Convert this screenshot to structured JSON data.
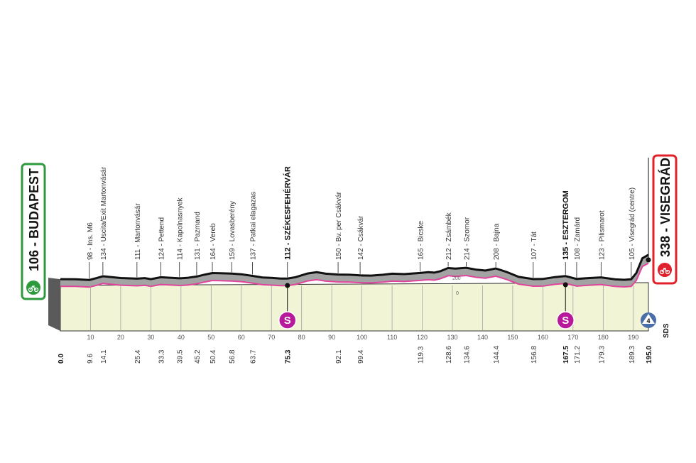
{
  "chart_data": {
    "type": "area",
    "title": "",
    "distance_range": [
      0,
      195
    ],
    "altitude_label_ticks": [
      "200",
      "0"
    ],
    "start": {
      "altitude": "106",
      "name": "BUDAPEST",
      "label": "106 - BUDAPEST",
      "km": "0.0",
      "color": "#2e9a3e"
    },
    "finish": {
      "altitude": "338",
      "name": "VISEGRÁD",
      "label": "338 - VISEGRÁD",
      "km": "195.0",
      "color": "#e0202a"
    },
    "x_axis_ticks": [
      10,
      20,
      30,
      40,
      50,
      60,
      70,
      80,
      90,
      100,
      110,
      120,
      130,
      140,
      150,
      160,
      170,
      180,
      190
    ],
    "profile": [
      [
        0,
        106
      ],
      [
        5,
        105
      ],
      [
        9.6,
        98
      ],
      [
        12,
        116
      ],
      [
        14.1,
        134
      ],
      [
        20,
        117
      ],
      [
        25.4,
        111
      ],
      [
        28,
        116
      ],
      [
        30,
        106
      ],
      [
        33.3,
        124
      ],
      [
        39.5,
        114
      ],
      [
        42,
        118
      ],
      [
        45.2,
        131
      ],
      [
        48,
        150
      ],
      [
        50.4,
        164
      ],
      [
        53,
        162
      ],
      [
        56.8,
        159
      ],
      [
        60,
        153
      ],
      [
        63.7,
        137
      ],
      [
        67,
        122
      ],
      [
        70,
        118
      ],
      [
        73,
        112
      ],
      [
        75.3,
        112
      ],
      [
        78,
        125
      ],
      [
        82,
        160
      ],
      [
        85,
        172
      ],
      [
        88,
        158
      ],
      [
        92.1,
        150
      ],
      [
        96,
        148
      ],
      [
        99.4,
        142
      ],
      [
        103,
        140
      ],
      [
        107,
        148
      ],
      [
        110,
        158
      ],
      [
        114,
        154
      ],
      [
        119.3,
        165
      ],
      [
        122,
        172
      ],
      [
        124,
        168
      ],
      [
        126,
        182
      ],
      [
        128.6,
        212
      ],
      [
        131,
        206
      ],
      [
        134.6,
        214
      ],
      [
        138,
        196
      ],
      [
        141,
        188
      ],
      [
        144.4,
        208
      ],
      [
        148,
        174
      ],
      [
        152,
        128
      ],
      [
        156.8,
        107
      ],
      [
        160,
        108
      ],
      [
        164,
        126
      ],
      [
        167.5,
        135
      ],
      [
        171.2,
        108
      ],
      [
        175,
        116
      ],
      [
        179.3,
        123
      ],
      [
        184,
        104
      ],
      [
        187,
        100
      ],
      [
        189.3,
        105
      ],
      [
        191,
        165
      ],
      [
        193,
        305
      ],
      [
        195,
        338
      ]
    ],
    "points": [
      {
        "km": "0.0",
        "altitude": "106",
        "name": "BUDAPEST",
        "label": "",
        "bold": true
      },
      {
        "km": "9.6",
        "altitude": "98",
        "name": "Ins. M6",
        "label": "98 - Ins. M6",
        "bold": false
      },
      {
        "km": "14.1",
        "altitude": "134",
        "name": "Uscita/Exit Martonvásár",
        "label": "134 - Uscita/Exit Martonvásár",
        "bold": false
      },
      {
        "km": "25.4",
        "altitude": "111",
        "name": "Martonvásár",
        "label": "111 - Martonvásár",
        "bold": false
      },
      {
        "km": "33.3",
        "altitude": "124",
        "name": "Pettend",
        "label": "124 - Pettend",
        "bold": false
      },
      {
        "km": "39.5",
        "altitude": "114",
        "name": "Kápolnásnyék",
        "label": "114 - Kapolnasnyek",
        "bold": false
      },
      {
        "km": "45.2",
        "altitude": "131",
        "name": "Pázmánd",
        "label": "131 - Pazmand",
        "bold": false
      },
      {
        "km": "50.4",
        "altitude": "164",
        "name": "Vereb",
        "label": "164 - Vereb",
        "bold": false
      },
      {
        "km": "56.8",
        "altitude": "159",
        "name": "Lovasberény",
        "label": "159 - Lovasberény",
        "bold": false
      },
      {
        "km": "63.7",
        "altitude": "137",
        "name": "Patkai elágazás",
        "label": "137 - Patkai elagazas",
        "bold": false
      },
      {
        "km": "75.3",
        "altitude": "112",
        "name": "SZÉKESFEHÉRVÁR",
        "label": "112 - SZÉKESFEHÉRVÁR",
        "bold": true,
        "sprint": true
      },
      {
        "km": "92.1",
        "altitude": "150",
        "name": "Bv. per Csákvár",
        "label": "150 - Bv. per Csákvár",
        "bold": false
      },
      {
        "km": "99.4",
        "altitude": "142",
        "name": "Csákvár",
        "label": "142 - Csákvár",
        "bold": false
      },
      {
        "km": "119.3",
        "altitude": "165",
        "name": "Bicske",
        "label": "165 - Bicske",
        "bold": false
      },
      {
        "km": "128.6",
        "altitude": "212",
        "name": "Zsámbék",
        "label": "212 - Zsámbék",
        "bold": false
      },
      {
        "km": "134.6",
        "altitude": "214",
        "name": "Szomor",
        "label": "214 - Szomor",
        "bold": false
      },
      {
        "km": "144.4",
        "altitude": "208",
        "name": "Bajna",
        "label": "208 - Bajna",
        "bold": false
      },
      {
        "km": "156.8",
        "altitude": "107",
        "name": "Tát",
        "label": "107 - Tát",
        "bold": false
      },
      {
        "km": "167.5",
        "altitude": "135",
        "name": "ESZTERGOM",
        "label": "135 - ESZTERGOM",
        "bold": true,
        "sprint": true
      },
      {
        "km": "171.2",
        "altitude": "108",
        "name": "Zamárd",
        "label": "108 - Zamárd",
        "bold": false
      },
      {
        "km": "179.3",
        "altitude": "123",
        "name": "Pilismarót",
        "label": "123 - Pilismarot",
        "bold": false
      },
      {
        "km": "189.3",
        "altitude": "105",
        "name": "Visegrád (centre)",
        "label": "105 - Visegrád (centre)",
        "bold": false
      },
      {
        "km": "195.0",
        "altitude": "338",
        "name": "VISEGRÁD",
        "label": "",
        "bold": true
      }
    ],
    "sprints": [
      {
        "km": "75.3",
        "symbol": "S",
        "color": "#b8199a"
      },
      {
        "km": "167.5",
        "symbol": "S",
        "color": "#b8199a"
      }
    ],
    "finish_categories": {
      "circle_number": "4",
      "code": "SDS"
    },
    "colors": {
      "profile_fill": "#a3a3a3",
      "profile_outline": "#111111",
      "pink_line": "#e0449b",
      "base_fill": "#f1f5d5",
      "side_band": "#5a5a5a"
    }
  }
}
